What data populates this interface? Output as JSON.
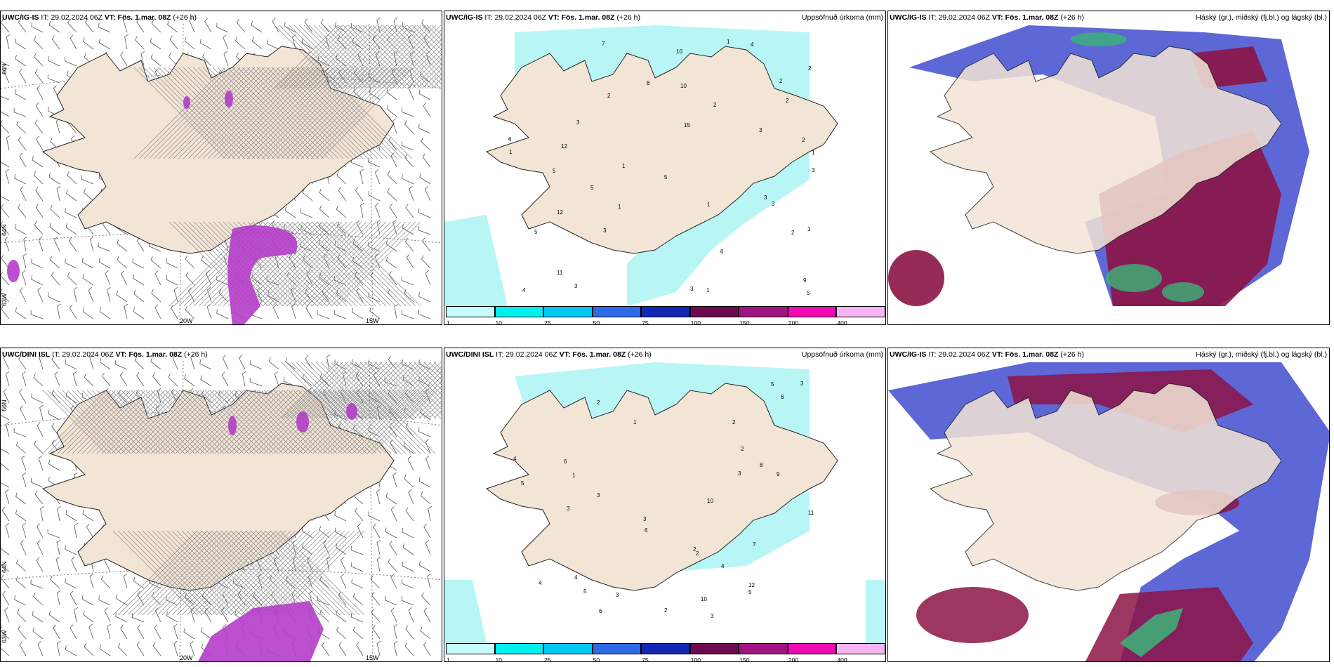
{
  "rows": [
    {
      "model": "UWC/IG-IS",
      "it_label": "IT:",
      "it_value": "29.02.2024 06Z",
      "vt_label": "VT:",
      "vt_value": "Fös. 1.mar. 08Z",
      "lead": "(+26 h)",
      "lon_labels": [
        "20W",
        "15W"
      ],
      "lat_labels": [
        "66N",
        "64N",
        "63W"
      ],
      "precip_numbers": [
        "2",
        "2",
        "2",
        "1",
        "1",
        "1",
        "1",
        "1",
        "2",
        "2",
        "3",
        "3",
        "3",
        "3",
        "5",
        "5",
        "5",
        "6",
        "7",
        "8",
        "9",
        "10",
        "11",
        "12",
        "15",
        "4",
        "4",
        "6",
        "3",
        "2",
        "3",
        "5",
        "5",
        "10",
        "12",
        "1",
        "3",
        "1",
        "2",
        "3",
        "1"
      ]
    },
    {
      "model": "UWC/DINI ISL",
      "it_label": "IT:",
      "it_value": "29.02.2024 06Z",
      "vt_label": "VT:",
      "vt_value": "Fös. 1.mar. 08Z",
      "lead": "(+26 h)",
      "lon_labels": [
        "20W",
        "15W"
      ],
      "lat_labels": [
        "66N",
        "64N",
        "63W"
      ],
      "precip_numbers": [
        "3",
        "2",
        "4",
        "6",
        "8",
        "10",
        "11",
        "3",
        "6",
        "5",
        "4",
        "4",
        "3",
        "2",
        "3",
        "5",
        "5",
        "6",
        "7",
        "9",
        "12",
        "2",
        "6",
        "5",
        "10",
        "2",
        "3",
        "1",
        "2",
        "1",
        "4",
        "3",
        "2",
        "3"
      ]
    }
  ],
  "precip_panel": {
    "right_title": "Uppsöfnuð úrkoma (mm)",
    "colorbar": [
      {
        "label": "1",
        "color": "#c6fcfc"
      },
      {
        "label": "10",
        "color": "#00f0f0"
      },
      {
        "label": "25",
        "color": "#00c8f0"
      },
      {
        "label": "50",
        "color": "#2d6ae6"
      },
      {
        "label": "75",
        "color": "#1428b4"
      },
      {
        "label": "100",
        "color": "#6e0a50"
      },
      {
        "label": "150",
        "color": "#a01482"
      },
      {
        "label": "200",
        "color": "#f00ab4"
      },
      {
        "label": "400",
        "color": "#f8b4f0"
      }
    ]
  },
  "cloud_panel": {
    "right_title": "Háský (gr.), miðský (fj.bl.) og lágský (bl.)"
  },
  "colors": {
    "land": "#f3e5d6",
    "precip_light": "#b8f6f6",
    "wind_barb": "#555555",
    "hatch": "#888888",
    "snow_purple": "#b43cc8",
    "cloud_low": "#4b58d2",
    "cloud_mid": "#8c1446",
    "cloud_high": "#3cb478"
  }
}
